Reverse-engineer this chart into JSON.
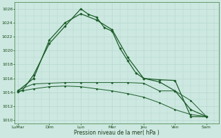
{
  "background_color": "#cce8e0",
  "grid_color": "#b8d8d0",
  "line_color": "#1a5c28",
  "xlabel": "Pression niveau de la mer( hPa )",
  "ylim": [
    1009.5,
    1027
  ],
  "yticks": [
    1010,
    1012,
    1014,
    1016,
    1018,
    1020,
    1022,
    1024,
    1026
  ],
  "x_tick_labels": [
    "LuMar",
    "Dim",
    "Lun",
    "Mer",
    "Jeu",
    "Ven",
    "Sam"
  ],
  "x_tick_positions": [
    0,
    2,
    4,
    6,
    8,
    10,
    12
  ],
  "series": [
    {
      "x": [
        0,
        0.3,
        1,
        2,
        3,
        4,
        4.5,
        5,
        5.5,
        6,
        6.5,
        7,
        7.5,
        8,
        9,
        10,
        11,
        12
      ],
      "y": [
        1014.1,
        1014.3,
        1016.5,
        1021.0,
        1023.5,
        1026.0,
        1025.2,
        1024.8,
        1023.3,
        1022.8,
        1020.3,
        1018.5,
        1016.8,
        1016.0,
        1015.8,
        1015.7,
        1010.5,
        1010.5
      ],
      "marker": "D",
      "markersize": 1.8,
      "linewidth": 0.9,
      "linestyle": "-"
    },
    {
      "x": [
        0,
        1,
        2,
        3,
        4,
        5,
        6,
        7,
        8,
        9,
        10,
        11,
        12
      ],
      "y": [
        1014.2,
        1016.0,
        1021.5,
        1024.0,
        1025.3,
        1024.4,
        1023.0,
        1019.0,
        1016.0,
        1015.5,
        1014.2,
        1011.5,
        1010.5
      ],
      "marker": "D",
      "markersize": 1.8,
      "linewidth": 0.9,
      "linestyle": "-"
    },
    {
      "x": [
        0,
        1,
        2,
        3,
        4,
        5,
        6,
        7,
        8,
        9,
        10,
        11,
        12
      ],
      "y": [
        1014.3,
        1015.2,
        1015.3,
        1015.4,
        1015.4,
        1015.4,
        1015.4,
        1015.4,
        1015.3,
        1014.2,
        1014.2,
        1012.8,
        1010.5
      ],
      "marker": "D",
      "markersize": 1.5,
      "linewidth": 0.7,
      "linestyle": "-"
    },
    {
      "x": [
        0,
        1,
        2,
        3,
        4,
        5,
        6,
        7,
        8,
        9,
        10,
        11,
        12
      ],
      "y": [
        1014.1,
        1014.5,
        1014.8,
        1014.9,
        1014.8,
        1014.5,
        1014.2,
        1013.8,
        1013.3,
        1012.5,
        1011.5,
        1010.8,
        1010.5
      ],
      "marker": "D",
      "markersize": 1.5,
      "linewidth": 0.7,
      "linestyle": "-"
    }
  ]
}
